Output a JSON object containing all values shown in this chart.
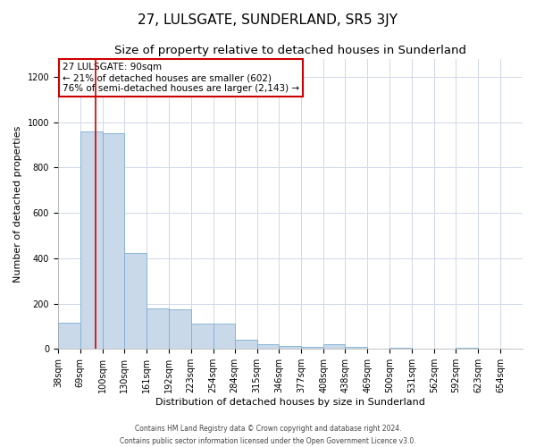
{
  "title": "27, LULSGATE, SUNDERLAND, SR5 3JY",
  "subtitle": "Size of property relative to detached houses in Sunderland",
  "xlabel": "Distribution of detached houses by size in Sunderland",
  "ylabel": "Number of detached properties",
  "footer_line1": "Contains HM Land Registry data © Crown copyright and database right 2024.",
  "footer_line2": "Contains public sector information licensed under the Open Government Licence v3.0.",
  "annotation_title": "27 LULSGATE: 90sqm",
  "annotation_line2": "← 21% of detached houses are smaller (602)",
  "annotation_line3": "76% of semi-detached houses are larger (2,143) →",
  "bar_color": "#c9d9ea",
  "bar_edge_color": "#7bafd4",
  "redline_x": 90,
  "redline_color": "#cc0000",
  "annotation_box_color": "#cc0000",
  "categories": [
    "38sqm",
    "69sqm",
    "100sqm",
    "130sqm",
    "161sqm",
    "192sqm",
    "223sqm",
    "254sqm",
    "284sqm",
    "315sqm",
    "346sqm",
    "377sqm",
    "408sqm",
    "438sqm",
    "469sqm",
    "500sqm",
    "531sqm",
    "562sqm",
    "592sqm",
    "623sqm",
    "654sqm"
  ],
  "bin_edges": [
    38,
    69,
    100,
    130,
    161,
    192,
    223,
    254,
    284,
    315,
    346,
    377,
    408,
    438,
    469,
    500,
    531,
    562,
    592,
    623,
    654
  ],
  "values": [
    115,
    960,
    950,
    425,
    178,
    175,
    110,
    110,
    40,
    20,
    15,
    10,
    20,
    10,
    0,
    5,
    0,
    0,
    5,
    0,
    0
  ],
  "ylim": [
    0,
    1280
  ],
  "yticks": [
    0,
    200,
    400,
    600,
    800,
    1000,
    1200
  ],
  "background_color": "#ffffff",
  "grid_color": "#d0d8e8",
  "title_fontsize": 11,
  "subtitle_fontsize": 9.5,
  "axis_fontsize": 8,
  "tick_fontsize": 7,
  "annotation_fontsize": 7.5,
  "footer_fontsize": 5.5
}
